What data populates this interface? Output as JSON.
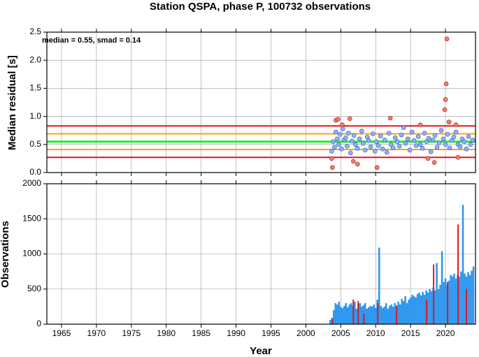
{
  "chart_data": [
    {
      "type": "scatter",
      "title": "Station QSPA, phase P, 100732 observations",
      "ylabel": "Median residual [s]",
      "annotation": "median = 0.55, smad = 0.14",
      "xlim": [
        1962.9,
        2024.3
      ],
      "xticks": [
        1965,
        1970,
        1975,
        1980,
        1985,
        1990,
        1995,
        2000,
        2005,
        2010,
        2015,
        2020
      ],
      "ylim": [
        0,
        2.5
      ],
      "yticks": [
        {
          "value": 0,
          "label": "0.0"
        },
        0.5,
        {
          "value": 1,
          "label": "1.0"
        },
        1.5,
        {
          "value": 2,
          "label": "2.0"
        },
        2.5
      ],
      "grid": true,
      "hlines": [
        {
          "value": 0.27,
          "color": "#e8141c"
        },
        {
          "value": 0.41,
          "color": "#ffa500"
        },
        {
          "value": 0.55,
          "color": "#22ee22"
        },
        {
          "value": 0.69,
          "color": "#ffa500"
        },
        {
          "value": 0.83,
          "color": "#e8141c"
        }
      ],
      "series": [
        {
          "color": "#8ab4f8",
          "x": [
            2003.7,
            2003.9,
            2004.1,
            2004.3,
            2004.5,
            2004.7,
            2004.9,
            2005.1,
            2005.3,
            2005.5,
            2005.7,
            2005.9,
            2006.1,
            2006.4,
            2006.6,
            2006.9,
            2007.1,
            2007.4,
            2007.7,
            2008.0,
            2008.2,
            2008.5,
            2008.8,
            2009.0,
            2009.3,
            2009.6,
            2009.9,
            2010.1,
            2010.4,
            2010.7,
            2011.0,
            2011.3,
            2011.6,
            2011.9,
            2012.2,
            2012.5,
            2012.8,
            2013.1,
            2013.4,
            2013.7,
            2014.0,
            2014.3,
            2014.6,
            2014.9,
            2015.2,
            2015.5,
            2015.8,
            2016.1,
            2016.4,
            2016.7,
            2017.0,
            2017.3,
            2017.6,
            2017.9,
            2018.2,
            2018.5,
            2018.8,
            2019.1,
            2019.4,
            2019.7,
            2020.0,
            2020.3,
            2020.6,
            2020.9,
            2021.2,
            2021.5,
            2021.8,
            2022.1,
            2022.4,
            2022.7,
            2023.0,
            2023.3,
            2023.6,
            2023.9
          ],
          "values": [
            0.38,
            0.55,
            0.45,
            0.72,
            0.6,
            0.5,
            0.68,
            0.42,
            0.78,
            0.58,
            0.62,
            0.47,
            0.7,
            0.35,
            0.56,
            0.66,
            0.5,
            0.43,
            0.6,
            0.74,
            0.52,
            0.4,
            0.63,
            0.57,
            0.46,
            0.69,
            0.38,
            0.55,
            0.48,
            0.65,
            0.42,
            0.58,
            0.36,
            0.7,
            0.5,
            0.44,
            0.62,
            0.55,
            0.47,
            0.67,
            0.8,
            0.52,
            0.6,
            0.4,
            0.72,
            0.57,
            0.48,
            0.64,
            0.5,
            0.43,
            0.7,
            0.55,
            0.61,
            0.37,
            0.58,
            0.66,
            0.45,
            0.53,
            0.75,
            0.6,
            0.5,
            0.68,
            0.44,
            0.57,
            0.63,
            0.72,
            0.5,
            0.46,
            0.6,
            0.55,
            0.42,
            0.64,
            0.5,
            0.58
          ]
        },
        {
          "color": "#f47a6c",
          "x": [
            2003.7,
            2003.8,
            2004.3,
            2004.6,
            2005.2,
            2006.3,
            2006.8,
            2007.4,
            2010.2,
            2012.1,
            2016.4,
            2017.5,
            2018.4,
            2019.9,
            2020.0,
            2020.1,
            2020.2,
            2020.5,
            2021.5,
            2021.8
          ],
          "values": [
            0.25,
            0.09,
            0.93,
            0.95,
            0.85,
            0.96,
            0.2,
            0.15,
            0.09,
            0.97,
            0.85,
            0.25,
            0.18,
            1.12,
            1.3,
            1.58,
            2.38,
            0.9,
            0.85,
            0.27
          ]
        }
      ]
    },
    {
      "type": "bar",
      "ylabel": "Observations",
      "xlabel": "Year",
      "xlim": [
        1962.9,
        2024.3
      ],
      "xticks": [
        1965,
        1970,
        1975,
        1980,
        1985,
        1990,
        1995,
        2000,
        2005,
        2010,
        2015,
        2020
      ],
      "ylim": [
        0,
        2000
      ],
      "yticks": [
        0,
        500,
        1000,
        1500,
        2000
      ],
      "grid": true,
      "series": [
        {
          "color": "#2f98f0",
          "x": [
            2003.5,
            2003.75,
            2004,
            2004.25,
            2004.5,
            2004.75,
            2005,
            2005.25,
            2005.5,
            2005.75,
            2006,
            2006.25,
            2006.5,
            2006.75,
            2007,
            2007.25,
            2007.5,
            2007.75,
            2008,
            2008.25,
            2008.5,
            2008.75,
            2009,
            2009.25,
            2009.5,
            2009.75,
            2010,
            2010.25,
            2010.5,
            2010.75,
            2011,
            2011.25,
            2011.5,
            2011.75,
            2012,
            2012.25,
            2012.5,
            2012.75,
            2013,
            2013.25,
            2013.5,
            2013.75,
            2014,
            2014.25,
            2014.5,
            2014.75,
            2015,
            2015.25,
            2015.5,
            2015.75,
            2016,
            2016.25,
            2016.5,
            2016.75,
            2017,
            2017.25,
            2017.5,
            2017.75,
            2018,
            2018.25,
            2018.5,
            2018.75,
            2019,
            2019.25,
            2019.5,
            2019.75,
            2020,
            2020.25,
            2020.5,
            2020.75,
            2021,
            2021.25,
            2021.5,
            2021.75,
            2022,
            2022.25,
            2022.5,
            2022.75,
            2023,
            2023.25,
            2023.5,
            2023.75,
            2024
          ],
          "values": [
            60,
            90,
            200,
            300,
            280,
            320,
            250,
            230,
            260,
            300,
            240,
            280,
            300,
            260,
            320,
            220,
            280,
            300,
            250,
            270,
            300,
            220,
            240,
            260,
            250,
            280,
            230,
            350,
            1090,
            260,
            230,
            250,
            300,
            220,
            260,
            280,
            250,
            300,
            270,
            320,
            280,
            360,
            330,
            400,
            300,
            350,
            380,
            420,
            400,
            380,
            430,
            450,
            410,
            460,
            420,
            480,
            450,
            500,
            470,
            520,
            480,
            870,
            500,
            560,
            1040,
            600,
            650,
            560,
            620,
            700,
            680,
            720,
            650,
            700,
            680,
            750,
            1700,
            720,
            680,
            740,
            700,
            760,
            820
          ]
        },
        {
          "color": "#e8141c",
          "x": [
            2003.8,
            2006.8,
            2007.5,
            2008.3,
            2010.3,
            2013.0,
            2017.3,
            2018.3,
            2020.3,
            2021.8,
            2023.0
          ],
          "values": [
            80,
            350,
            330,
            150,
            300,
            250,
            350,
            850,
            600,
            1420,
            500
          ]
        }
      ]
    }
  ]
}
